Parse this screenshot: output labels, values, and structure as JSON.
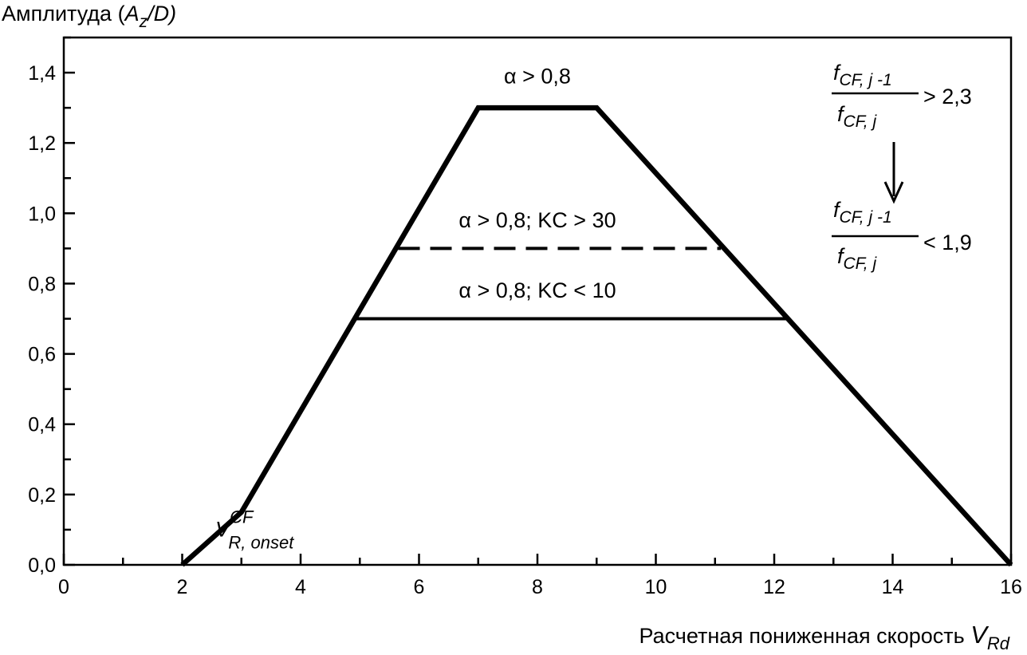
{
  "chart_data": {
    "type": "line",
    "ylabel": {
      "prefix": "Амплитуда (",
      "var": "A",
      "sub": "z",
      "suffix": "/D)"
    },
    "xlabel": {
      "text": "Расчетная пониженная скорость ",
      "var": "V",
      "sub": "Rd"
    },
    "xlim": [
      0,
      16
    ],
    "ylim": [
      0,
      1.5
    ],
    "x_ticks": [
      0,
      2,
      4,
      6,
      8,
      10,
      12,
      14,
      16
    ],
    "x_tick_labels": [
      "0",
      "2",
      "4",
      "6",
      "8",
      "10",
      "12",
      "14",
      "16"
    ],
    "y_ticks": [
      0,
      0.2,
      0.4,
      0.6,
      0.8,
      1.0,
      1.2,
      1.4
    ],
    "y_tick_labels": [
      "0,0",
      "0,2",
      "0,4",
      "0,6",
      "0,8",
      "1,0",
      "1,2",
      "1,4"
    ],
    "grid": false,
    "series": [
      {
        "style": "solid-thick",
        "x": [
          2,
          3,
          7,
          9,
          16
        ],
        "y": [
          0,
          0.15,
          1.3,
          1.3,
          0
        ]
      },
      {
        "style": "dashed",
        "x": [
          5.65,
          11.1
        ],
        "y": [
          0.9,
          0.9
        ]
      },
      {
        "style": "solid",
        "x": [
          4.95,
          12.25
        ],
        "y": [
          0.7,
          0.7
        ]
      }
    ],
    "annotations": [
      {
        "text": "α > 0,8",
        "x": 8.0,
        "y": 1.37
      },
      {
        "text": "α > 0,8; KC > 30",
        "x": 8.0,
        "y": 0.96
      },
      {
        "text": "α > 0,8; KC < 10",
        "x": 8.0,
        "y": 0.76
      }
    ],
    "onset_label": {
      "main": "V",
      "sup": "CF",
      "sub": "R, onset",
      "x": 2.6,
      "y": 0.08
    },
    "ratio_formula": {
      "numerator": "f",
      "numerator_sub": "CF, j -1",
      "denominator": "f",
      "denominator_sub": "CF, j",
      "condition_before": "> 2,3",
      "condition_after": "< 1,9"
    }
  }
}
